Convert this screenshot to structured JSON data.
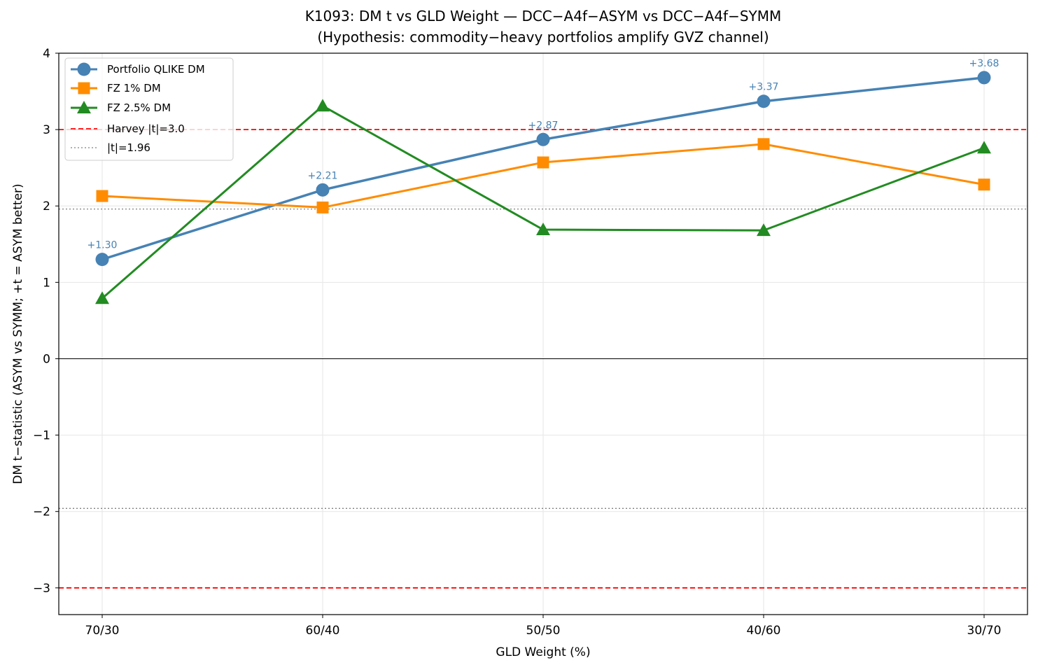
{
  "chart_data": {
    "type": "line",
    "title": "K1093: DM t vs GLD Weight — DCC−A4f−ASYM vs DCC−A4f−SYMM",
    "subtitle": "(Hypothesis: commodity−heavy portfolios amplify GVZ channel)",
    "xlabel": "GLD Weight (%)",
    "ylabel": "DM t−statistic (ASYM vs SYMM; +t = ASYM better)",
    "categories": [
      "70/30",
      "60/40",
      "50/50",
      "40/60",
      "30/70"
    ],
    "ylim": [
      -3.35,
      4.0
    ],
    "yticks": [
      -3,
      -2,
      -1,
      0,
      1,
      2,
      3,
      4
    ],
    "ytick_labels": [
      "−3",
      "−2",
      "−1",
      "0",
      "1",
      "2",
      "3",
      "4"
    ],
    "grid": true,
    "legend_position": "top-left",
    "series": [
      {
        "name": "Portfolio QLIKE DM",
        "values": [
          1.3,
          2.21,
          2.87,
          3.37,
          3.68
        ],
        "color": "#4682b4",
        "marker": "circle",
        "annotations": [
          "+1.30",
          "+2.21",
          "+2.87",
          "+3.37",
          "+3.68"
        ]
      },
      {
        "name": "FZ 1% DM",
        "values": [
          2.13,
          1.98,
          2.57,
          2.81,
          2.28
        ],
        "color": "#ff8c00",
        "marker": "square"
      },
      {
        "name": "FZ 2.5% DM",
        "values": [
          0.79,
          3.31,
          1.69,
          1.68,
          2.76
        ],
        "color": "#228b22",
        "marker": "triangle"
      }
    ],
    "reference_lines": [
      {
        "name": "Harvey |t|=3.0",
        "values": [
          3.0,
          -3.0
        ],
        "color": "#ff0000",
        "style": "dashed"
      },
      {
        "name": "|t|=1.96",
        "values": [
          1.96,
          -1.96
        ],
        "color": "#808080",
        "style": "dotted"
      },
      {
        "values": [
          0
        ],
        "color": "#000000",
        "style": "solid"
      }
    ]
  }
}
